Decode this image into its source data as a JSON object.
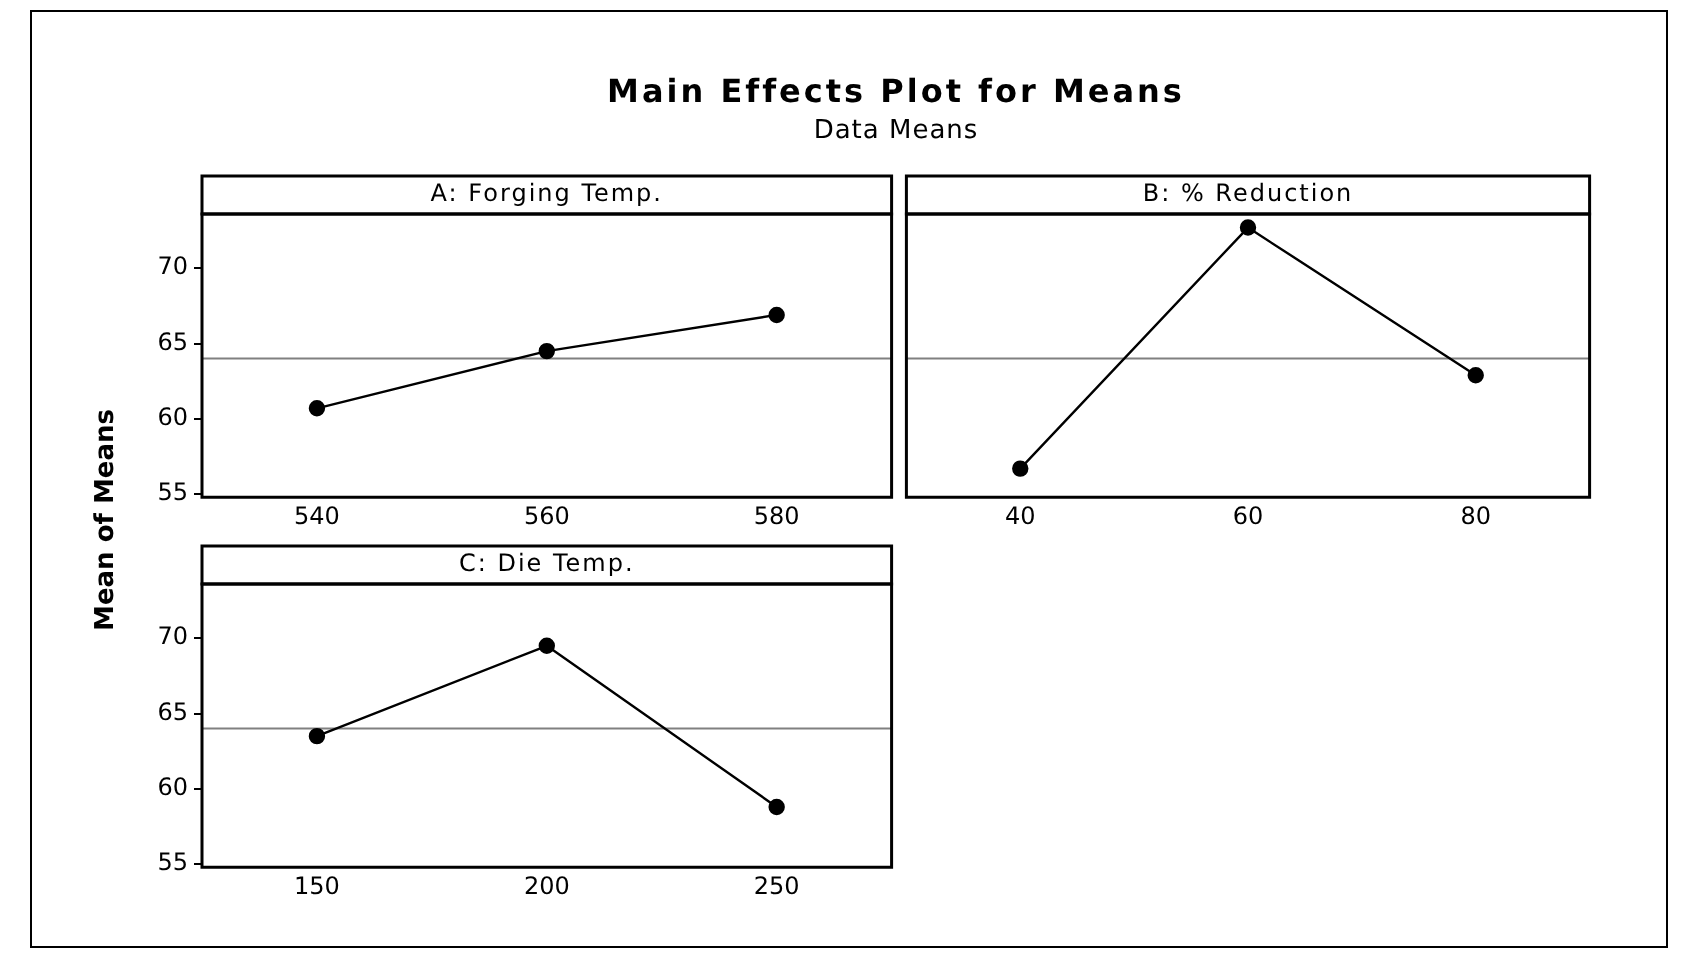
{
  "chart_data": [
    {
      "type": "line",
      "title": "Main Effects Plot for Means",
      "subtitle": "Data Means",
      "ylabel": "Mean of Means",
      "xlabel": "A: Forging Temp.",
      "x": [
        540,
        560,
        580
      ],
      "series": [
        {
          "color": "#000000",
          "values": [
            60.7,
            64.5,
            66.9
          ]
        }
      ],
      "xlim": [
        530,
        590
      ],
      "xticks": [
        540,
        560,
        580
      ],
      "ylim": [
        54.8,
        73.6
      ],
      "yticks": [
        55,
        60,
        65,
        70
      ],
      "ref_lines": [
        {
          "axis": "y",
          "value": 64.0,
          "color": "#808080"
        }
      ],
      "marker": "circle",
      "grid": false,
      "legend": false
    },
    {
      "type": "line",
      "xlabel": "B: % Reduction",
      "x": [
        40,
        60,
        80
      ],
      "series": [
        {
          "color": "#000000",
          "values": [
            56.7,
            72.7,
            62.9
          ]
        }
      ],
      "xlim": [
        30,
        90
      ],
      "xticks": [
        40,
        60,
        80
      ],
      "ylim": [
        54.8,
        73.6
      ],
      "yticks": [
        55,
        60,
        65,
        70
      ],
      "tick_labels": "x",
      "ref_lines": [
        {
          "axis": "y",
          "value": 64.0,
          "color": "#808080"
        }
      ],
      "marker": "circle",
      "grid": false,
      "legend": false
    },
    {
      "type": "line",
      "xlabel": "C: Die Temp.",
      "x": [
        150,
        200,
        250
      ],
      "series": [
        {
          "color": "#000000",
          "values": [
            63.5,
            69.5,
            58.8
          ]
        }
      ],
      "xlim": [
        125,
        275
      ],
      "xticks": [
        150,
        200,
        250
      ],
      "ylim": [
        54.8,
        73.6
      ],
      "yticks": [
        55,
        60,
        65,
        70
      ],
      "ref_lines": [
        {
          "axis": "y",
          "value": 64.0,
          "color": "#808080"
        }
      ],
      "marker": "circle",
      "grid": false,
      "legend": false
    }
  ]
}
